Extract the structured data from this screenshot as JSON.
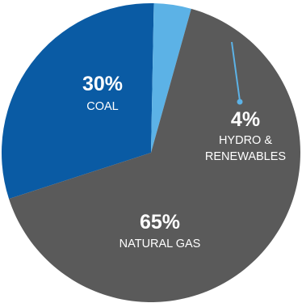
{
  "chart_data": {
    "type": "pie",
    "slices": [
      {
        "key": "coal",
        "percent_label": "30%",
        "name": "COAL",
        "value": 30,
        "color": "#0a5ba4"
      },
      {
        "key": "hydro",
        "percent_label": "4%",
        "name_lines": [
          "HYDRO &",
          "RENEWABLES"
        ],
        "value": 4,
        "color": "#5cb2e6"
      },
      {
        "key": "gas",
        "percent_label": "65%",
        "name": "NATURAL GAS",
        "value": 65,
        "color": "#5a5a5a"
      }
    ],
    "leader_line_color": "#5cb2e6"
  }
}
